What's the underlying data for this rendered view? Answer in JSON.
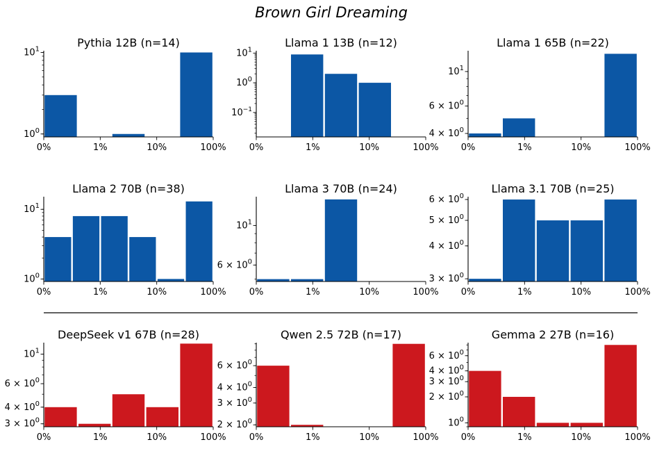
{
  "figure_title": "Brown Girl Dreaming",
  "colors": {
    "blue": "#0c57a5",
    "red": "#cc181e",
    "axis": "#000000"
  },
  "x_tick_labels": [
    "0%",
    "1%",
    "10%",
    "100%"
  ],
  "chart_data": [
    {
      "type": "bar",
      "title": "Pythia 12B (n=14)",
      "color": "blue",
      "yscale": "log",
      "ylim": [
        0.92,
        10.5
      ],
      "values": [
        3,
        0,
        1,
        0,
        10
      ],
      "yticks": [
        {
          "v": 1,
          "base": "10",
          "sup": "0"
        },
        {
          "v": 10,
          "base": "10",
          "sup": "1"
        }
      ]
    },
    {
      "type": "bar",
      "title": "Llama 1 13B (n=12)",
      "color": "blue",
      "yscale": "log",
      "ylim": [
        0.015,
        12
      ],
      "values": [
        0,
        9,
        2,
        1,
        0
      ],
      "yticks": [
        {
          "v": 0.1,
          "base": "10",
          "sup": "−1"
        },
        {
          "v": 1,
          "base": "10",
          "sup": "0"
        },
        {
          "v": 10,
          "base": "10",
          "sup": "1"
        }
      ]
    },
    {
      "type": "bar",
      "title": "Llama 1 65B (n=22)",
      "color": "blue",
      "yscale": "log",
      "ylim": [
        3.8,
        13.6
      ],
      "values": [
        4,
        5,
        0,
        0,
        13
      ],
      "yticks": [
        {
          "v": 4,
          "base": "4 × 10",
          "sup": "0"
        },
        {
          "v": 6,
          "base": "6 × 10",
          "sup": "0"
        },
        {
          "v": 10,
          "base": "10",
          "sup": "1"
        }
      ]
    },
    {
      "type": "bar",
      "title": "Llama 2 70B (n=38)",
      "color": "blue",
      "yscale": "log",
      "ylim": [
        0.92,
        15.2
      ],
      "values": [
        4,
        8,
        8,
        4,
        1,
        13
      ],
      "yticks": [
        {
          "v": 1,
          "base": "10",
          "sup": "0"
        },
        {
          "v": 10,
          "base": "10",
          "sup": "1"
        }
      ]
    },
    {
      "type": "bar",
      "title": "Llama 3 70B (n=24)",
      "color": "blue",
      "yscale": "log",
      "ylim": [
        4.85,
        14.5
      ],
      "values": [
        5,
        5,
        14,
        0,
        0
      ],
      "yticks": [
        {
          "v": 6,
          "base": "6 × 10",
          "sup": "0"
        },
        {
          "v": 10,
          "base": "10",
          "sup": "1"
        }
      ]
    },
    {
      "type": "bar",
      "title": "Llama 3.1 70B (n=25)",
      "color": "blue",
      "yscale": "log",
      "ylim": [
        2.93,
        6.15
      ],
      "values": [
        3,
        6,
        5,
        5,
        6
      ],
      "yticks": [
        {
          "v": 3,
          "base": "3 × 10",
          "sup": "0"
        },
        {
          "v": 4,
          "base": "4 × 10",
          "sup": "0"
        },
        {
          "v": 5,
          "base": "5 × 10",
          "sup": "0"
        },
        {
          "v": 6,
          "base": "6 × 10",
          "sup": "0"
        }
      ]
    },
    {
      "type": "bar",
      "title": "DeepSeek v1 67B (n=28)",
      "color": "red",
      "yscale": "log",
      "ylim": [
        2.85,
        12.2
      ],
      "values": [
        4,
        3,
        5,
        4,
        12
      ],
      "yticks": [
        {
          "v": 3,
          "base": "3 × 10",
          "sup": "0"
        },
        {
          "v": 4,
          "base": "4 × 10",
          "sup": "0"
        },
        {
          "v": 6,
          "base": "6 × 10",
          "sup": "0"
        },
        {
          "v": 10,
          "base": "10",
          "sup": "1"
        }
      ]
    },
    {
      "type": "bar",
      "title": "Qwen 2.5 72B (n=17)",
      "color": "red",
      "yscale": "log",
      "ylim": [
        1.93,
        9.2
      ],
      "values": [
        6,
        2,
        0,
        0,
        9
      ],
      "yticks": [
        {
          "v": 2,
          "base": "2 × 10",
          "sup": "0"
        },
        {
          "v": 3,
          "base": "3 × 10",
          "sup": "0"
        },
        {
          "v": 4,
          "base": "4 × 10",
          "sup": "0"
        },
        {
          "v": 6,
          "base": "6 × 10",
          "sup": "0"
        }
      ]
    },
    {
      "type": "bar",
      "title": "Gemma 2 27B (n=16)",
      "color": "red",
      "yscale": "log",
      "ylim": [
        0.9,
        8.5
      ],
      "values": [
        4,
        2,
        1,
        1,
        8
      ],
      "yticks": [
        {
          "v": 1,
          "base": "10",
          "sup": "0"
        },
        {
          "v": 2,
          "base": "2 × 10",
          "sup": "0"
        },
        {
          "v": 3,
          "base": "3 × 10",
          "sup": "0"
        },
        {
          "v": 4,
          "base": "4 × 10",
          "sup": "0"
        },
        {
          "v": 6,
          "base": "6 × 10",
          "sup": "0"
        }
      ]
    }
  ]
}
